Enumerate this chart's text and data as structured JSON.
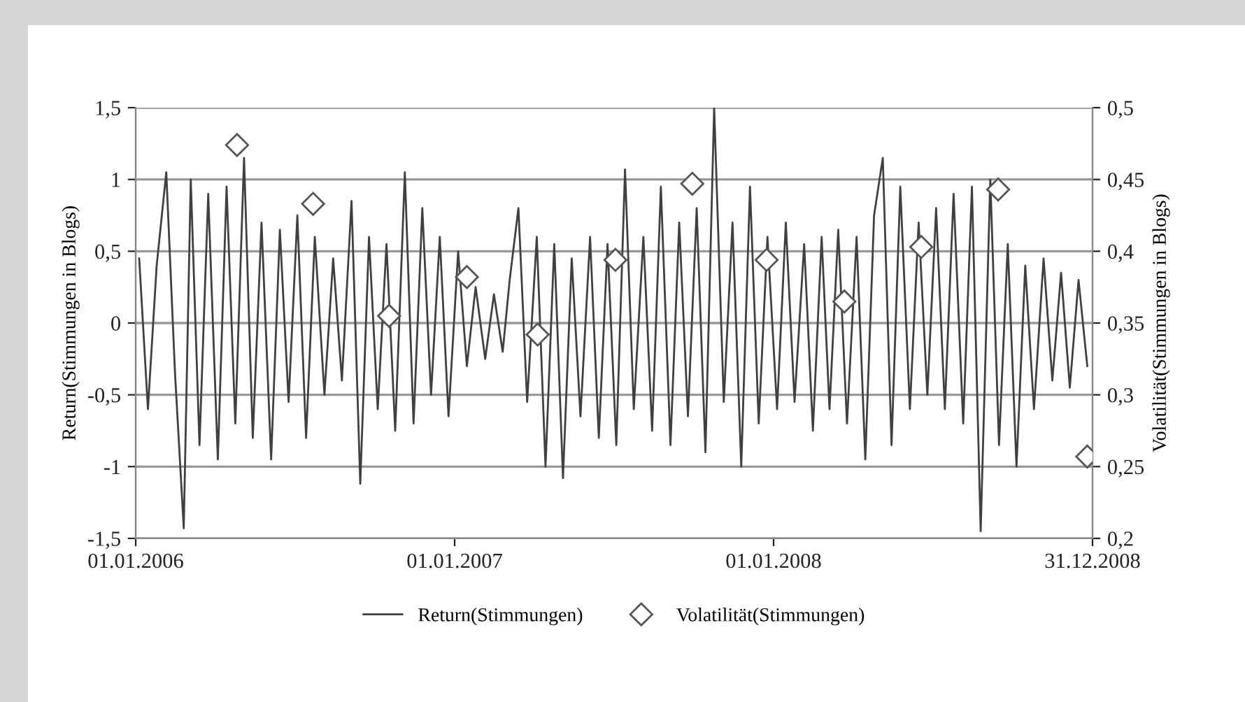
{
  "chart_data": {
    "type": "line",
    "ylabel": "Return(Stimmungen in Blogs)",
    "y2label": "Volatilität(Stimmungen in Blogs)",
    "xlim": [
      "2006-01-01",
      "2008-12-31"
    ],
    "xticks": [
      {
        "value": "2006-01-01",
        "label": "01.01.2006"
      },
      {
        "value": "2007-01-01",
        "label": "01.01.2007"
      },
      {
        "value": "2008-01-01",
        "label": "01.01.2008"
      },
      {
        "value": "2008-12-31",
        "label": "31.12.2008"
      }
    ],
    "ylim": [
      -1.5,
      1.5
    ],
    "yticks": [
      {
        "value": -1.5,
        "label": "-1,5"
      },
      -1,
      {
        "value": -0.5,
        "label": "-0,5"
      },
      0,
      {
        "value": 0.5,
        "label": "0,5"
      },
      1,
      {
        "value": 1.5,
        "label": "1,5"
      }
    ],
    "y2lim": [
      0.2,
      0.5
    ],
    "y2ticks": [
      {
        "value": 0.2,
        "label": "0,2"
      },
      {
        "value": 0.25,
        "label": "0,25"
      },
      {
        "value": 0.3,
        "label": "0,3"
      },
      {
        "value": 0.35,
        "label": "0,35"
      },
      {
        "value": 0.4,
        "label": "0,4"
      },
      {
        "value": 0.45,
        "label": "0,45"
      },
      {
        "value": 0.5,
        "label": "0,5"
      }
    ],
    "grid": "y",
    "legend": "bottom",
    "series": [
      {
        "name": "Return(Stimmungen)",
        "color": "#404040",
        "marker": "none",
        "line_style": "solid",
        "x": [
          "2006-01-05",
          "2006-01-15",
          "2006-01-25",
          "2006-02-05",
          "2006-02-15",
          "2006-02-25",
          "2006-03-05",
          "2006-03-15",
          "2006-03-25",
          "2006-04-05",
          "2006-04-15",
          "2006-04-25",
          "2006-05-05",
          "2006-05-15",
          "2006-05-25",
          "2006-06-05",
          "2006-06-15",
          "2006-06-25",
          "2006-07-05",
          "2006-07-15",
          "2006-07-25",
          "2006-08-05",
          "2006-08-15",
          "2006-08-25",
          "2006-09-05",
          "2006-09-15",
          "2006-09-25",
          "2006-10-05",
          "2006-10-15",
          "2006-10-25",
          "2006-11-05",
          "2006-11-15",
          "2006-11-25",
          "2006-12-05",
          "2006-12-15",
          "2006-12-25",
          "2007-01-05",
          "2007-01-15",
          "2007-01-25",
          "2007-02-05",
          "2007-02-15",
          "2007-02-25",
          "2007-03-05",
          "2007-03-15",
          "2007-03-25",
          "2007-04-05",
          "2007-04-15",
          "2007-04-25",
          "2007-05-05",
          "2007-05-15",
          "2007-05-25",
          "2007-06-05",
          "2007-06-15",
          "2007-06-25",
          "2007-07-05",
          "2007-07-15",
          "2007-07-25",
          "2007-08-05",
          "2007-08-15",
          "2007-08-25",
          "2007-09-05",
          "2007-09-15",
          "2007-09-25",
          "2007-10-05",
          "2007-10-15",
          "2007-10-25",
          "2007-11-05",
          "2007-11-15",
          "2007-11-25",
          "2007-12-05",
          "2007-12-15",
          "2007-12-25",
          "2008-01-05",
          "2008-01-15",
          "2008-01-25",
          "2008-02-05",
          "2008-02-15",
          "2008-02-25",
          "2008-03-05",
          "2008-03-15",
          "2008-03-25",
          "2008-04-05",
          "2008-04-15",
          "2008-04-25",
          "2008-05-05",
          "2008-05-15",
          "2008-05-25",
          "2008-06-05",
          "2008-06-15",
          "2008-06-25",
          "2008-07-05",
          "2008-07-15",
          "2008-07-25",
          "2008-08-05",
          "2008-08-15",
          "2008-08-25",
          "2008-09-05",
          "2008-09-15",
          "2008-09-25",
          "2008-10-05",
          "2008-10-15",
          "2008-10-25",
          "2008-11-05",
          "2008-11-15",
          "2008-11-25",
          "2008-12-05",
          "2008-12-15",
          "2008-12-25"
        ],
        "values": [
          0.45,
          -0.6,
          0.4,
          1.05,
          -0.35,
          -1.43,
          1.0,
          -0.85,
          0.9,
          -0.95,
          0.95,
          -0.7,
          1.15,
          -0.8,
          0.7,
          -0.95,
          0.65,
          -0.55,
          0.75,
          -0.8,
          0.6,
          -0.5,
          0.45,
          -0.4,
          0.85,
          -1.12,
          0.6,
          -0.6,
          0.55,
          -0.75,
          1.05,
          -0.7,
          0.8,
          -0.5,
          0.6,
          -0.65,
          0.5,
          -0.3,
          0.25,
          -0.25,
          0.2,
          -0.2,
          0.3,
          0.8,
          -0.55,
          0.6,
          -1.0,
          0.55,
          -1.08,
          0.45,
          -0.65,
          0.6,
          -0.8,
          0.55,
          -0.85,
          1.07,
          -0.6,
          0.6,
          -0.75,
          0.95,
          -0.85,
          0.7,
          -0.65,
          0.8,
          -0.9,
          1.5,
          -0.55,
          0.7,
          -1.0,
          0.95,
          -0.7,
          0.6,
          -0.6,
          0.7,
          -0.55,
          0.55,
          -0.75,
          0.6,
          -0.6,
          0.65,
          -0.7,
          0.6,
          -0.95,
          0.75,
          1.15,
          -0.85,
          0.95,
          -0.6,
          0.7,
          -0.5,
          0.8,
          -0.6,
          0.9,
          -0.7,
          0.95,
          -1.45,
          1.0,
          -0.85,
          0.55,
          -1.0,
          0.4,
          -0.6,
          0.45,
          -0.4,
          0.35,
          -0.45,
          0.3,
          -0.3
        ]
      },
      {
        "name": "Volatilität(Stimmungen)",
        "type": "scatter",
        "axis": "y2",
        "color": "#555555",
        "marker": "diamond",
        "x": [
          "2006-04-27",
          "2006-07-23",
          "2006-10-18",
          "2007-01-15",
          "2007-04-06",
          "2007-07-04",
          "2007-09-30",
          "2007-12-24",
          "2008-03-22",
          "2008-06-18",
          "2008-09-14",
          "2008-12-25"
        ],
        "values": [
          0.474,
          0.433,
          0.355,
          0.382,
          0.342,
          0.394,
          0.447,
          0.394,
          0.365,
          0.403,
          0.443,
          0.257
        ]
      }
    ]
  }
}
